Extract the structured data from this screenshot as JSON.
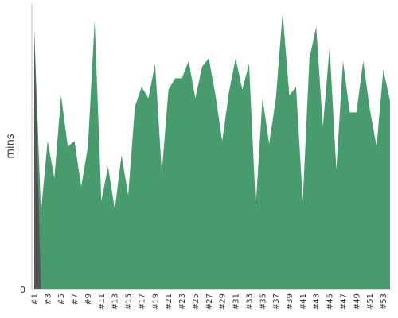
{
  "chart_data": {
    "type": "area",
    "title": "",
    "xlabel": "",
    "ylabel": "mins",
    "y_tick_labels": [
      "0"
    ],
    "grid": false,
    "legend": "none",
    "x": [
      "#1",
      "#2",
      "#3",
      "#4",
      "#5",
      "#6",
      "#7",
      "#8",
      "#9",
      "#10",
      "#11",
      "#12",
      "#13",
      "#14",
      "#15",
      "#16",
      "#17",
      "#18",
      "#19",
      "#20",
      "#21",
      "#22",
      "#23",
      "#24",
      "#25",
      "#26",
      "#27",
      "#28",
      "#29",
      "#30",
      "#31",
      "#32",
      "#33",
      "#34",
      "#35",
      "#36",
      "#37",
      "#38",
      "#39",
      "#40",
      "#41",
      "#42",
      "#43",
      "#44",
      "#45",
      "#46",
      "#47",
      "#48",
      "#49",
      "#50",
      "#51",
      "#52",
      "#53",
      "#54"
    ],
    "x_tick_labels": [
      "#1",
      "#3",
      "#5",
      "#7",
      "#9",
      "#11",
      "#13",
      "#15",
      "#17",
      "#19",
      "#21",
      "#23",
      "#25",
      "#27",
      "#29",
      "#31",
      "#33",
      "#35",
      "#37",
      "#39",
      "#41",
      "#43",
      "#45",
      "#47",
      "#49",
      "#51",
      "#53"
    ],
    "ylim": [
      0,
      100
    ],
    "series": [
      {
        "name": "",
        "color": "#479b6d",
        "values": [
          91,
          27,
          52,
          39,
          68,
          50,
          52,
          36,
          50,
          94,
          31,
          43,
          28,
          47,
          33,
          64,
          71,
          67,
          79,
          41,
          70,
          74,
          74,
          80,
          67,
          78,
          81,
          68,
          52,
          69,
          81,
          70,
          79,
          29,
          67,
          51,
          67,
          97,
          68,
          71,
          31,
          81,
          92,
          57,
          85,
          42,
          80,
          62,
          62,
          80,
          63,
          50,
          77,
          66
        ]
      },
      {
        "name": "",
        "color": "#555555",
        "values": [
          91,
          0,
          0,
          0,
          0,
          0,
          0,
          0,
          0,
          0,
          0,
          0,
          0,
          0,
          0,
          0,
          0,
          0,
          0,
          0,
          0,
          0,
          0,
          0,
          0,
          0,
          0,
          0,
          0,
          0,
          0,
          0,
          0,
          0,
          0,
          0,
          0,
          0,
          0,
          0,
          0,
          0,
          0,
          0,
          0,
          0,
          0,
          0,
          0,
          0,
          0,
          0,
          0,
          0
        ]
      }
    ]
  }
}
